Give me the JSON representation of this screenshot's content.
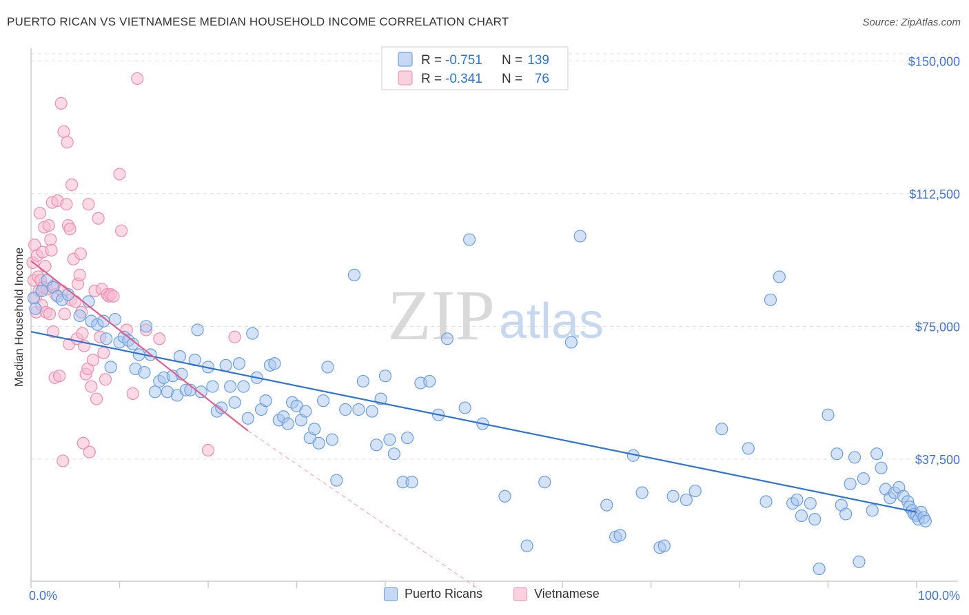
{
  "header": {
    "title": "PUERTO RICAN VS VIETNAMESE MEDIAN HOUSEHOLD INCOME CORRELATION CHART",
    "source": "Source: ZipAtlas.com"
  },
  "watermark": {
    "zip": "ZIP",
    "atlas": "atlas"
  },
  "legend": {
    "r_label": "R =",
    "n_label": "N =",
    "items": [
      {
        "r": "-0.751",
        "n": "139",
        "color": "#6fa0e0"
      },
      {
        "r": "-0.341",
        "n": "76",
        "color": "#f09ab8"
      }
    ]
  },
  "bottom_legend": [
    {
      "label": "Puerto Ricans",
      "fill": "#c5d9f5",
      "stroke": "#6fa0e0"
    },
    {
      "label": "Vietnamese",
      "fill": "#fbd0df",
      "stroke": "#f09ab8"
    }
  ],
  "colors": {
    "blue_fill": "#a9c6ef",
    "blue_stroke": "#6b9edc",
    "blue_line": "#2e73d2",
    "pink_fill": "#f7bcd0",
    "pink_stroke": "#ea8fb0",
    "pink_line": "#e0608c",
    "axis_text": "#4472c4"
  },
  "chart_data": {
    "type": "scatter",
    "title": "PUERTO RICAN VS VIETNAMESE MEDIAN HOUSEHOLD INCOME CORRELATION CHART",
    "xlabel": "",
    "ylabel": "Median Household Income",
    "xlim": [
      0,
      100
    ],
    "ylim": [
      3000,
      152000
    ],
    "x_tick_labels": [
      "0.0%",
      "100.0%"
    ],
    "y_ticks": [
      37500,
      75000,
      112500,
      150000
    ],
    "y_tick_labels": [
      "$37,500",
      "$75,000",
      "$112,500",
      "$150,000"
    ],
    "grid": true,
    "legend_position": "top-center",
    "series": [
      {
        "name": "Puerto Ricans",
        "r": -0.751,
        "n": 139,
        "trend": {
          "x": [
            0,
            100
          ],
          "y": [
            73500,
            22500
          ]
        },
        "points": [
          [
            0.3,
            83000
          ],
          [
            0.5,
            80000
          ],
          [
            1.2,
            85000
          ],
          [
            1.8,
            88000
          ],
          [
            2.5,
            86000
          ],
          [
            3.0,
            83500
          ],
          [
            3.5,
            82500
          ],
          [
            4.2,
            84000
          ],
          [
            5.5,
            78000
          ],
          [
            6.5,
            82000
          ],
          [
            6.8,
            76500
          ],
          [
            7.5,
            75500
          ],
          [
            8.2,
            76500
          ],
          [
            8.5,
            71500
          ],
          [
            9.0,
            63500
          ],
          [
            9.5,
            77000
          ],
          [
            10.0,
            70500
          ],
          [
            10.5,
            72000
          ],
          [
            11.0,
            71000
          ],
          [
            11.5,
            70000
          ],
          [
            11.8,
            63000
          ],
          [
            12.2,
            67000
          ],
          [
            12.8,
            62000
          ],
          [
            13.0,
            75000
          ],
          [
            13.5,
            67000
          ],
          [
            14.0,
            56500
          ],
          [
            14.5,
            59500
          ],
          [
            15.0,
            60500
          ],
          [
            15.4,
            56500
          ],
          [
            16.0,
            61000
          ],
          [
            16.5,
            55500
          ],
          [
            16.8,
            66500
          ],
          [
            17.0,
            61500
          ],
          [
            17.5,
            57000
          ],
          [
            18.0,
            57000
          ],
          [
            18.5,
            65500
          ],
          [
            18.8,
            74000
          ],
          [
            19.2,
            56500
          ],
          [
            20.0,
            63500
          ],
          [
            20.5,
            58000
          ],
          [
            21.0,
            51000
          ],
          [
            21.5,
            52000
          ],
          [
            22.0,
            64000
          ],
          [
            22.5,
            58000
          ],
          [
            23.0,
            53500
          ],
          [
            23.5,
            64500
          ],
          [
            24.0,
            58000
          ],
          [
            24.5,
            49000
          ],
          [
            25.0,
            73000
          ],
          [
            25.5,
            60500
          ],
          [
            26.0,
            51500
          ],
          [
            26.5,
            54000
          ],
          [
            27.0,
            64000
          ],
          [
            27.5,
            64500
          ],
          [
            28.0,
            48500
          ],
          [
            28.5,
            49500
          ],
          [
            29.0,
            47500
          ],
          [
            29.5,
            53500
          ],
          [
            30.0,
            52500
          ],
          [
            30.5,
            48500
          ],
          [
            31.0,
            51000
          ],
          [
            31.5,
            43500
          ],
          [
            32.0,
            46000
          ],
          [
            32.5,
            42000
          ],
          [
            33.0,
            54000
          ],
          [
            33.5,
            63500
          ],
          [
            34.0,
            43000
          ],
          [
            34.5,
            31500
          ],
          [
            35.5,
            51500
          ],
          [
            36.5,
            89500
          ],
          [
            37.0,
            51500
          ],
          [
            37.5,
            59500
          ],
          [
            38.5,
            51000
          ],
          [
            39.0,
            41500
          ],
          [
            39.5,
            54500
          ],
          [
            40.0,
            61000
          ],
          [
            40.5,
            43000
          ],
          [
            41.0,
            39000
          ],
          [
            42.0,
            31000
          ],
          [
            42.5,
            43500
          ],
          [
            43.0,
            31000
          ],
          [
            44.0,
            59000
          ],
          [
            45.0,
            59500
          ],
          [
            46.0,
            50000
          ],
          [
            47.0,
            71500
          ],
          [
            49.0,
            52000
          ],
          [
            49.5,
            99500
          ],
          [
            51.0,
            47500
          ],
          [
            53.5,
            27000
          ],
          [
            56.0,
            13000
          ],
          [
            58.0,
            31000
          ],
          [
            61.0,
            70500
          ],
          [
            62.0,
            100500
          ],
          [
            65.0,
            24500
          ],
          [
            66.0,
            15500
          ],
          [
            66.5,
            16000
          ],
          [
            68.0,
            38500
          ],
          [
            69.0,
            28000
          ],
          [
            71.0,
            12500
          ],
          [
            71.5,
            13000
          ],
          [
            72.5,
            27000
          ],
          [
            74.0,
            26000
          ],
          [
            75.0,
            28500
          ],
          [
            78.0,
            46000
          ],
          [
            81.0,
            40500
          ],
          [
            83.0,
            25500
          ],
          [
            83.5,
            82500
          ],
          [
            84.5,
            89000
          ],
          [
            86.0,
            25000
          ],
          [
            86.5,
            26000
          ],
          [
            87.0,
            21500
          ],
          [
            88.0,
            25000
          ],
          [
            88.5,
            20500
          ],
          [
            89.0,
            6500
          ],
          [
            90.0,
            50000
          ],
          [
            91.0,
            39000
          ],
          [
            91.5,
            24500
          ],
          [
            92.0,
            22000
          ],
          [
            92.5,
            30500
          ],
          [
            93.0,
            38000
          ],
          [
            93.5,
            8500
          ],
          [
            94.0,
            32000
          ],
          [
            95.0,
            23000
          ],
          [
            95.5,
            39000
          ],
          [
            96.0,
            35000
          ],
          [
            96.5,
            29000
          ],
          [
            97.0,
            26500
          ],
          [
            97.5,
            28000
          ],
          [
            98.0,
            29500
          ],
          [
            98.5,
            27000
          ],
          [
            99.0,
            25500
          ],
          [
            99.2,
            24000
          ],
          [
            99.5,
            23000
          ],
          [
            99.7,
            22000
          ],
          [
            100.0,
            21500
          ],
          [
            100.2,
            20500
          ],
          [
            100.5,
            22500
          ],
          [
            100.8,
            21000
          ],
          [
            101.0,
            20000
          ]
        ]
      },
      {
        "name": "Vietnamese",
        "r": -0.341,
        "n": 76,
        "trend": {
          "x": [
            0,
            24.5
          ],
          "y": [
            93500,
            45500
          ]
        },
        "trend_extension": {
          "x": [
            24.5,
            51
          ],
          "y": [
            45500,
            0
          ]
        },
        "points": [
          [
            0.2,
            93000
          ],
          [
            0.3,
            88000
          ],
          [
            0.4,
            98000
          ],
          [
            0.5,
            83000
          ],
          [
            0.6,
            79000
          ],
          [
            0.7,
            95000
          ],
          [
            0.8,
            89000
          ],
          [
            0.9,
            85000
          ],
          [
            1.0,
            107000
          ],
          [
            1.1,
            88000
          ],
          [
            1.2,
            81000
          ],
          [
            1.3,
            96000
          ],
          [
            1.4,
            86000
          ],
          [
            1.5,
            103000
          ],
          [
            1.6,
            92000
          ],
          [
            1.7,
            79000
          ],
          [
            1.8,
            85500
          ],
          [
            2.0,
            103500
          ],
          [
            2.1,
            78500
          ],
          [
            2.2,
            99500
          ],
          [
            2.3,
            96500
          ],
          [
            2.4,
            110000
          ],
          [
            2.5,
            73500
          ],
          [
            2.6,
            86500
          ],
          [
            2.7,
            60500
          ],
          [
            2.8,
            84000
          ],
          [
            3.0,
            110500
          ],
          [
            3.2,
            61000
          ],
          [
            3.4,
            138000
          ],
          [
            3.5,
            85000
          ],
          [
            3.6,
            37000
          ],
          [
            3.7,
            130000
          ],
          [
            3.8,
            78500
          ],
          [
            4.0,
            109500
          ],
          [
            4.1,
            127000
          ],
          [
            4.2,
            103500
          ],
          [
            4.3,
            70000
          ],
          [
            4.4,
            102500
          ],
          [
            4.5,
            82500
          ],
          [
            4.6,
            115000
          ],
          [
            4.8,
            94000
          ],
          [
            5.0,
            82000
          ],
          [
            5.2,
            71500
          ],
          [
            5.3,
            87000
          ],
          [
            5.5,
            89500
          ],
          [
            5.6,
            95500
          ],
          [
            5.7,
            79000
          ],
          [
            5.8,
            73000
          ],
          [
            5.9,
            42000
          ],
          [
            6.0,
            69500
          ],
          [
            6.2,
            61500
          ],
          [
            6.4,
            63000
          ],
          [
            6.5,
            109500
          ],
          [
            6.6,
            39500
          ],
          [
            6.8,
            58000
          ],
          [
            7.0,
            65500
          ],
          [
            7.2,
            85000
          ],
          [
            7.4,
            54500
          ],
          [
            7.6,
            105500
          ],
          [
            7.8,
            72000
          ],
          [
            8.0,
            85500
          ],
          [
            8.2,
            67500
          ],
          [
            8.4,
            60000
          ],
          [
            8.6,
            84000
          ],
          [
            8.8,
            83500
          ],
          [
            9.0,
            84000
          ],
          [
            9.3,
            83500
          ],
          [
            10.0,
            118000
          ],
          [
            10.2,
            102000
          ],
          [
            10.8,
            74000
          ],
          [
            11.5,
            56000
          ],
          [
            12.0,
            145000
          ],
          [
            13.0,
            74000
          ],
          [
            14.5,
            71500
          ],
          [
            20.0,
            40000
          ],
          [
            23.0,
            72000
          ]
        ]
      }
    ]
  }
}
